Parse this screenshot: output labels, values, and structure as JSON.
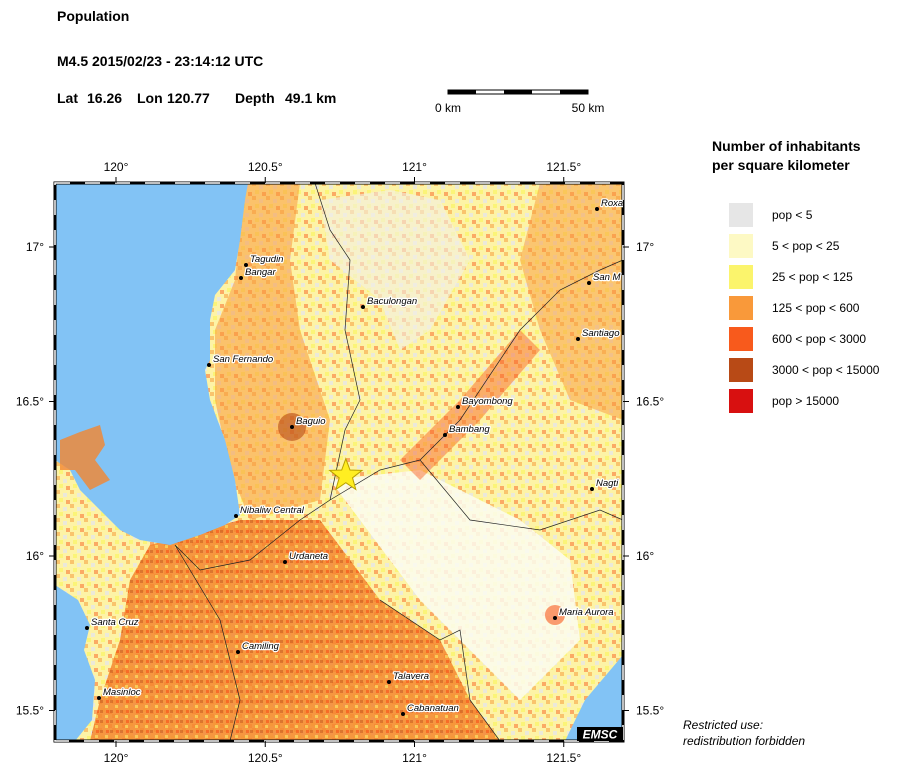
{
  "header": {
    "title": "Population",
    "event": "M4.5  2015/02/23 - 23:14:12 UTC",
    "lat_label": "Lat",
    "lat": 16.26,
    "lon_label": "Lon",
    "lon": 120.77,
    "depth_label": "Depth",
    "depth": "49.1 km"
  },
  "scale_bar": {
    "start": "0 km",
    "end": "50 km"
  },
  "map": {
    "lon_ticks": [
      {
        "value": 120,
        "label": "120°"
      },
      {
        "value": 120.5,
        "label": "120.5°"
      },
      {
        "value": 121,
        "label": "121°"
      },
      {
        "value": 121.5,
        "label": "121.5°"
      }
    ],
    "lat_ticks": [
      {
        "value": 17,
        "label": "17°"
      },
      {
        "value": 16.5,
        "label": "16.5°"
      },
      {
        "value": 16,
        "label": "16°"
      },
      {
        "value": 15.5,
        "label": "15.5°"
      }
    ],
    "cities": [
      "Roxa",
      "Tagudin",
      "Bangar",
      "San M",
      "Baculongan",
      "Santiago",
      "San Fernando",
      "Bayombong",
      "Baguio",
      "Bambang",
      "Nagti",
      "Nibaliw Central",
      "Urdaneta",
      "Maria Aurora",
      "Santa Cruz",
      "Camiling",
      "Talavera",
      "Masinloc",
      "Cabanatuan"
    ],
    "badge": "EMSC"
  },
  "legend": {
    "title": [
      "Number of inhabitants",
      "per square kilometer"
    ],
    "items": [
      {
        "label": "pop < 5",
        "color": "#e6e6e6"
      },
      {
        "label": "5 < pop < 25",
        "color": "#fdf9c4"
      },
      {
        "label": "25 < pop < 125",
        "color": "#fbf46c"
      },
      {
        "label": "125 < pop < 600",
        "color": "#f9993a"
      },
      {
        "label": "600 < pop < 3000",
        "color": "#f85a1c"
      },
      {
        "label": "3000 < pop < 15000",
        "color": "#b84a16"
      },
      {
        "label": "pop > 15000",
        "color": "#d81010"
      }
    ]
  },
  "notice": [
    "Restricted use:",
    "redistribution forbidden"
  ]
}
